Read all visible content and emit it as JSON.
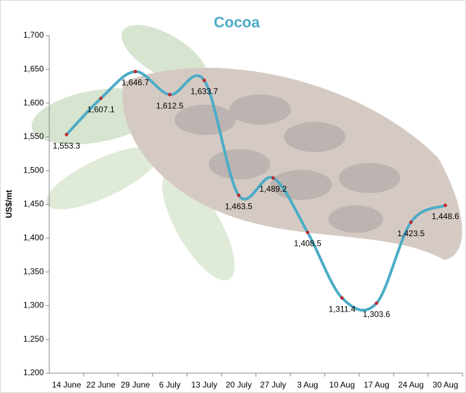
{
  "chart_data": {
    "type": "line",
    "title": "Cocoa",
    "y_label": "US$/mt",
    "categories": [
      "14 June",
      "22 June",
      "29 June",
      "6 July",
      "13 July",
      "20 July",
      "27 July",
      "3 Aug",
      "10 Aug",
      "17 Aug",
      "24 Aug",
      "30 Aug"
    ],
    "series": [
      {
        "name": "Cocoa",
        "color": "#4bacc6",
        "marker_color": "#c0282d",
        "values": [
          1553.3,
          1607.1,
          1646.7,
          1612.5,
          1633.7,
          1463.5,
          1489.2,
          1408.5,
          1311.4,
          1303.6,
          1423.5,
          1448.6
        ],
        "value_labels": [
          "1,553.3",
          "1,607.1",
          "1,646.7",
          "1,612.5",
          "1,633.7",
          "1,463.5",
          "1,489.2",
          "1,408.5",
          "1,311.4",
          "1,303.6",
          "1,423.5",
          "1,448.6"
        ]
      }
    ],
    "ylim": [
      1200,
      1700
    ],
    "yticks": [
      {
        "value": 1200,
        "label": "1,200"
      },
      {
        "value": 1250,
        "label": "1,250"
      },
      {
        "value": 1300,
        "label": "1,300"
      },
      {
        "value": 1350,
        "label": "1,350"
      },
      {
        "value": 1400,
        "label": "1,400"
      },
      {
        "value": 1450,
        "label": "1,450"
      },
      {
        "value": 1500,
        "label": "1,500"
      },
      {
        "value": 1550,
        "label": "1,550"
      },
      {
        "value": 1600,
        "label": "1,600"
      },
      {
        "value": 1650,
        "label": "1,650"
      },
      {
        "value": 1700,
        "label": "1,700"
      }
    ],
    "grid": false,
    "smooth": true
  }
}
